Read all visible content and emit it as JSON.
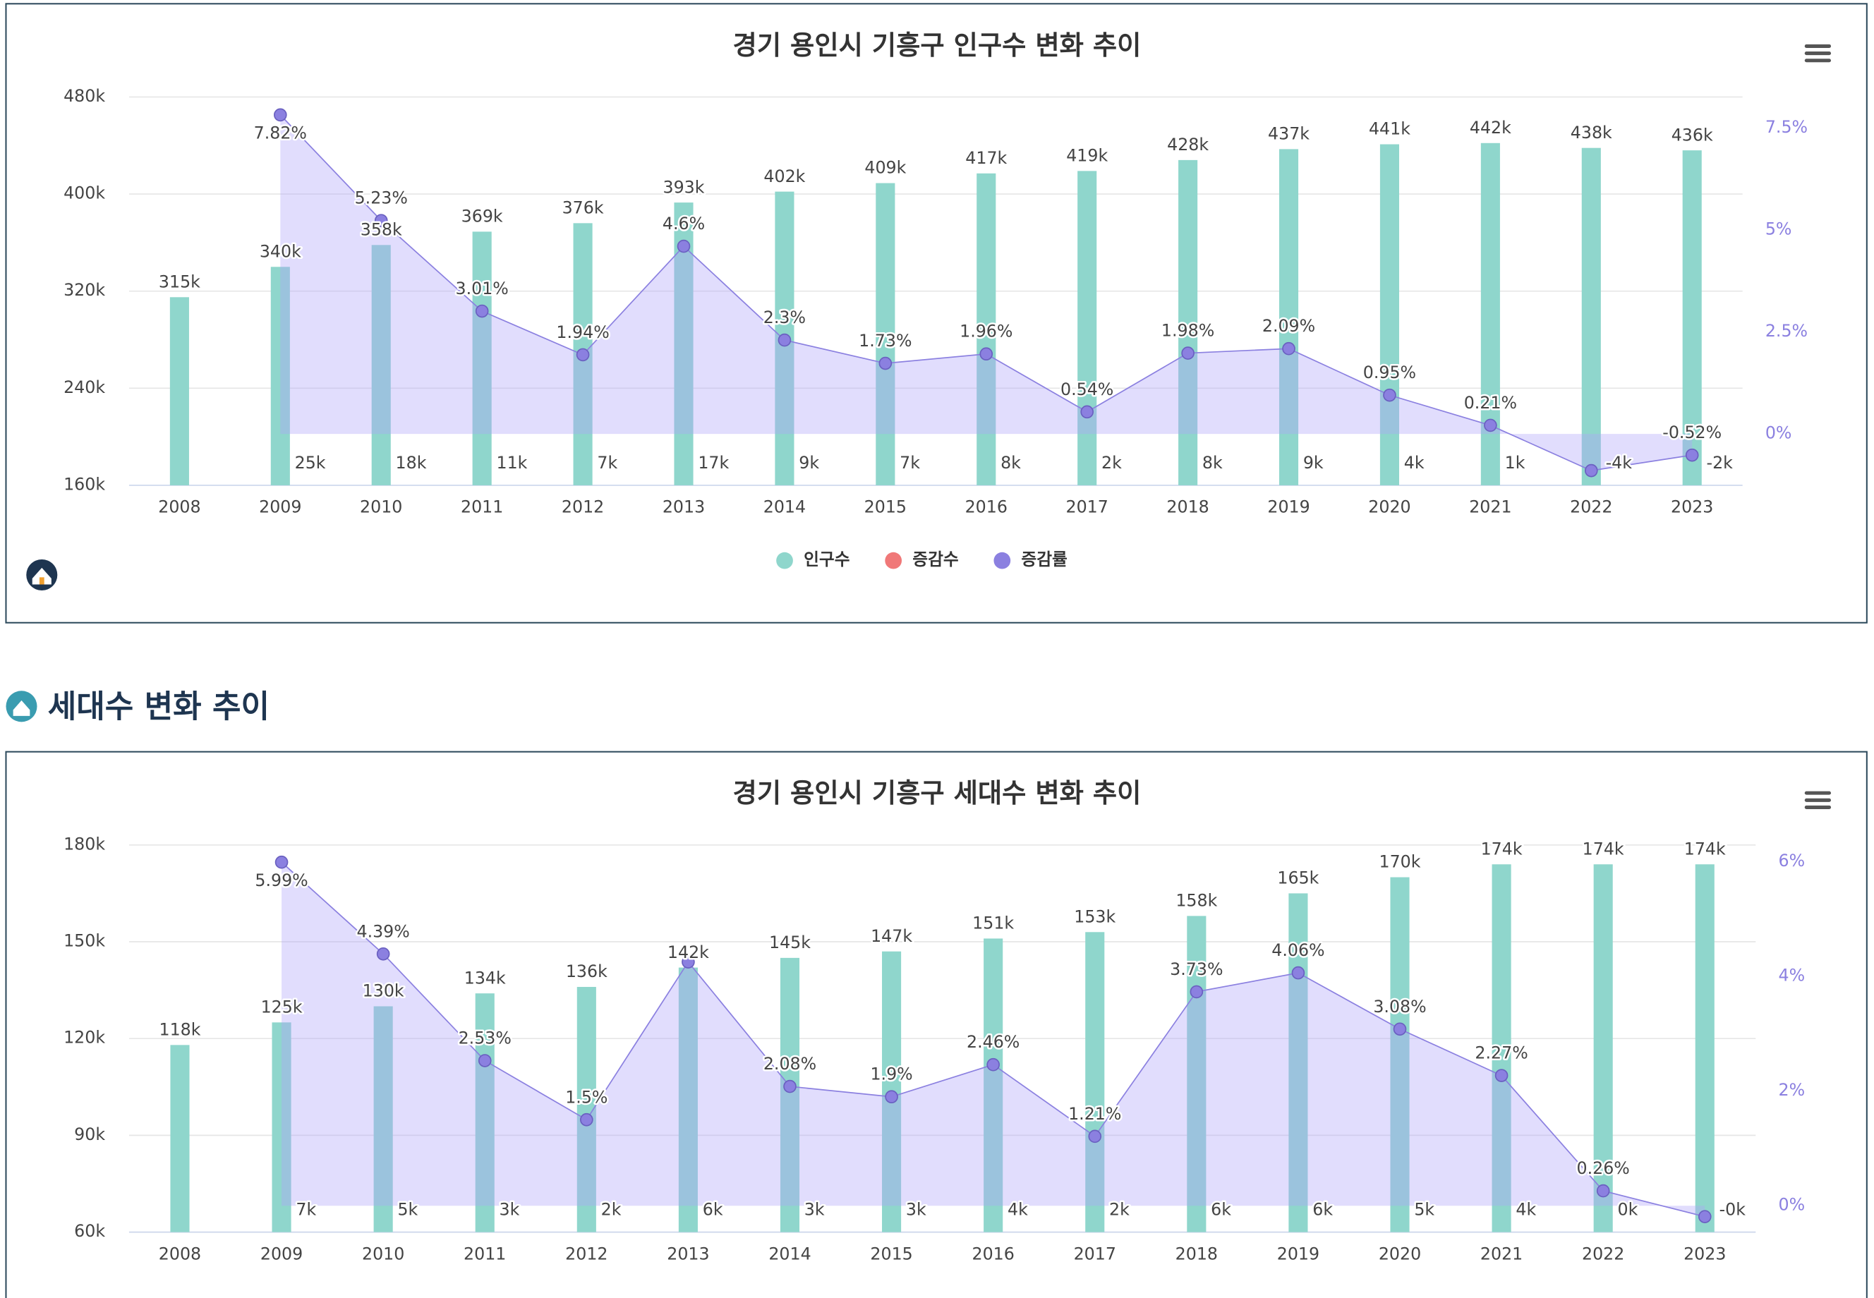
{
  "section_title": "세대수 변화 추이",
  "chart_data": [
    {
      "type": "combo",
      "title": "경기 용인시 기흥구 인구수 변화 추이",
      "categories": [
        "2008",
        "2009",
        "2010",
        "2011",
        "2012",
        "2013",
        "2014",
        "2015",
        "2016",
        "2017",
        "2018",
        "2019",
        "2020",
        "2021",
        "2022",
        "2023"
      ],
      "series": [
        {
          "name": "인구수",
          "type": "bar",
          "color": "#8fd6cc",
          "values": [
            315000,
            340000,
            358000,
            369000,
            376000,
            393000,
            402000,
            409000,
            417000,
            419000,
            428000,
            437000,
            441000,
            442000,
            438000,
            436000
          ],
          "value_labels": [
            "315k",
            "340k",
            "358k",
            "369k",
            "376k",
            "393k",
            "402k",
            "409k",
            "417k",
            "419k",
            "428k",
            "437k",
            "441k",
            "442k",
            "438k",
            "436k"
          ]
        },
        {
          "name": "증감수",
          "type": "bar",
          "color": "#f07878",
          "values": [
            null,
            25000,
            18000,
            11000,
            7000,
            17000,
            9000,
            7000,
            8000,
            2000,
            8000,
            9000,
            4000,
            1000,
            -4000,
            -2000
          ],
          "value_labels": [
            null,
            "25k",
            "18k",
            "11k",
            "7k",
            "17k",
            "9k",
            "7k",
            "8k",
            "2k",
            "8k",
            "9k",
            "4k",
            "1k",
            "-4k",
            "-2k"
          ]
        },
        {
          "name": "증감률",
          "type": "area",
          "axis": "y2",
          "color": "#8b80e0",
          "values": [
            null,
            7.82,
            5.23,
            3.01,
            1.94,
            4.6,
            2.3,
            1.73,
            1.96,
            0.54,
            1.98,
            2.09,
            0.95,
            0.21,
            -0.9,
            -0.52
          ],
          "value_labels": [
            null,
            "7.82%",
            "5.23%",
            "3.01%",
            "1.94%",
            "4.6%",
            "2.3%",
            "1.73%",
            "1.96%",
            "0.54%",
            "1.98%",
            "2.09%",
            "0.95%",
            "0.21%",
            null,
            "-0.52%"
          ]
        }
      ],
      "ylim": [
        160000,
        480000
      ],
      "yticks": [
        {
          "value": 160000,
          "label": "160k"
        },
        {
          "value": 240000,
          "label": "240k"
        },
        {
          "value": 320000,
          "label": "320k"
        },
        {
          "value": 400000,
          "label": "400k"
        },
        {
          "value": 480000,
          "label": "480k"
        }
      ],
      "y2lim": [
        -1.26,
        8.26
      ],
      "y2ticks": [
        {
          "value": 0,
          "label": "0%"
        },
        {
          "value": 2.5,
          "label": "2.5%"
        },
        {
          "value": 5,
          "label": "5%"
        },
        {
          "value": 7.5,
          "label": "7.5%"
        }
      ],
      "grid": true,
      "legend": "bottom"
    },
    {
      "type": "combo",
      "title": "경기 용인시 기흥구 세대수 변화 추이",
      "categories": [
        "2008",
        "2009",
        "2010",
        "2011",
        "2012",
        "2013",
        "2014",
        "2015",
        "2016",
        "2017",
        "2018",
        "2019",
        "2020",
        "2021",
        "2022",
        "2023"
      ],
      "series": [
        {
          "type": "bar",
          "color": "#8fd6cc",
          "values": [
            118000,
            125000,
            130000,
            134000,
            136000,
            142000,
            145000,
            147000,
            151000,
            153000,
            158000,
            165000,
            170000,
            174000,
            174000,
            174000
          ],
          "value_labels": [
            "118k",
            "125k",
            "130k",
            "134k",
            "136k",
            "142k",
            "145k",
            "147k",
            "151k",
            "153k",
            "158k",
            "165k",
            "170k",
            "174k",
            "174k",
            "174k"
          ]
        },
        {
          "type": "bar",
          "color": "#f07878",
          "values": [
            null,
            7000,
            5000,
            3000,
            2000,
            6000,
            3000,
            3000,
            4000,
            2000,
            6000,
            6000,
            5000,
            4000,
            300,
            -100
          ],
          "value_labels": [
            null,
            "7k",
            "5k",
            "3k",
            "2k",
            "6k",
            "3k",
            "3k",
            "4k",
            "2k",
            "6k",
            "6k",
            "5k",
            "4k",
            "0k",
            "-0k"
          ]
        },
        {
          "type": "area",
          "axis": "y2",
          "color": "#8b80e0",
          "values": [
            null,
            5.99,
            4.39,
            2.53,
            1.5,
            4.25,
            2.08,
            1.9,
            2.46,
            1.21,
            3.73,
            4.06,
            3.08,
            2.27,
            0.26,
            -0.19
          ],
          "value_labels": [
            null,
            "5.99%",
            "4.39%",
            "2.53%",
            "1.5%",
            null,
            "2.08%",
            "1.9%",
            "2.46%",
            "1.21%",
            "3.73%",
            "4.06%",
            "3.08%",
            "2.27%",
            "0.26%",
            null
          ]
        }
      ],
      "ylim": [
        60000,
        180000
      ],
      "yticks": [
        {
          "value": 60000,
          "label": "60k"
        },
        {
          "value": 90000,
          "label": "90k"
        },
        {
          "value": 120000,
          "label": "120k"
        },
        {
          "value": 150000,
          "label": "150k"
        },
        {
          "value": 180000,
          "label": "180k"
        }
      ],
      "y2lim": [
        -0.46,
        6.29
      ],
      "y2ticks": [
        {
          "value": 0,
          "label": "0%"
        },
        {
          "value": 2,
          "label": "2%"
        },
        {
          "value": 4,
          "label": "4%"
        },
        {
          "value": 6,
          "label": "6%"
        }
      ],
      "grid": true
    }
  ]
}
